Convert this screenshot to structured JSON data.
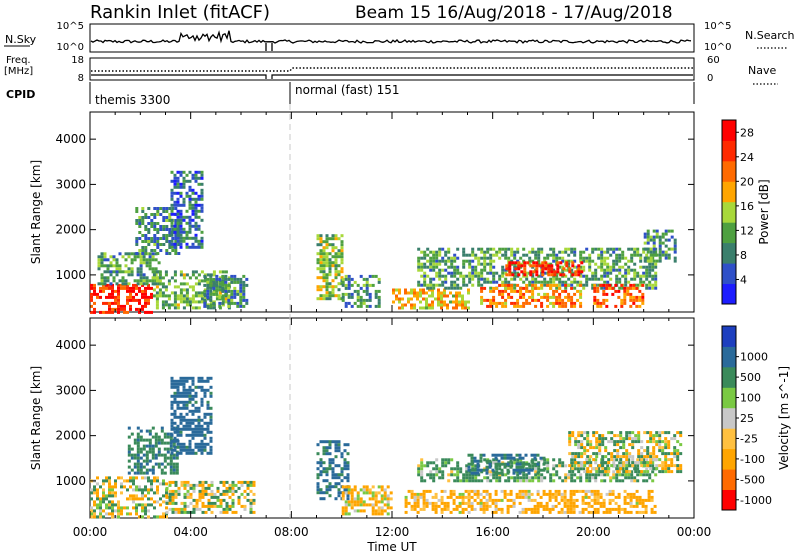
{
  "title": {
    "station": "Rankin Inlet (fitACF)",
    "beam_dates": "Beam 15  16/Aug/2018 - 17/Aug/2018"
  },
  "header_panels": {
    "nsky_label": "N.Sky",
    "nsky_ticks": [
      "10^5",
      "10^0"
    ],
    "nsearch_label": "N.Search",
    "nsearch_ticks": [
      "10^5",
      "10^0"
    ],
    "freq_label_1": "Freq.",
    "freq_label_2": "[MHz]",
    "freq_ticks": [
      "18",
      "8"
    ],
    "nave_label": "Nave",
    "nave_ticks": [
      "60",
      "0"
    ],
    "cpid_label": "CPID",
    "cpid_modes": [
      "themis 3300",
      "normal (fast) 151"
    ]
  },
  "colors": {
    "power_scale": [
      "#1d1dff",
      "#2f50c8",
      "#3a7f6c",
      "#4ea040",
      "#a8d83a",
      "#ffa500",
      "#ff6a00",
      "#ff2a00",
      "#ff0000"
    ],
    "velocity_scale": [
      "#ff0000",
      "#ff6a00",
      "#ffa500",
      "#ffc040",
      "#c8c8c8",
      "#7ac943",
      "#3a8a5a",
      "#2a6a9a",
      "#1d3fbf"
    ]
  },
  "chart_data": [
    {
      "type": "heatmap",
      "title": "",
      "xlabel": "",
      "ylabel": "Slant Range [km]",
      "x_ticks": [
        "00:00",
        "04:00",
        "08:00",
        "12:00",
        "16:00",
        "20:00",
        "00:00"
      ],
      "xlim_hours": [
        0,
        24
      ],
      "y_ticks": [
        1000,
        2000,
        3000,
        4000
      ],
      "ylim": [
        180,
        4600
      ],
      "colorbar_label": "Power [dB]",
      "colorbar_ticks": [
        4,
        8,
        12,
        16,
        20,
        24,
        28
      ],
      "colorbar_range": [
        0,
        30
      ],
      "regions": [
        {
          "t0": 0.0,
          "t1": 2.5,
          "r0": 200,
          "r1": 800,
          "value": 26
        },
        {
          "t0": 0.3,
          "t1": 2.8,
          "r0": 800,
          "r1": 1500,
          "value": 11
        },
        {
          "t0": 1.8,
          "t1": 3.5,
          "r0": 1500,
          "r1": 2500,
          "value": 9
        },
        {
          "t0": 2.5,
          "t1": 5.5,
          "r0": 250,
          "r1": 1100,
          "value": 12
        },
        {
          "t0": 3.2,
          "t1": 4.5,
          "r0": 1600,
          "r1": 3300,
          "value": 7
        },
        {
          "t0": 4.5,
          "t1": 6.2,
          "r0": 300,
          "r1": 1000,
          "value": 9
        },
        {
          "t0": 9.0,
          "t1": 10.0,
          "r0": 500,
          "r1": 1900,
          "value": 14
        },
        {
          "t0": 10.0,
          "t1": 11.5,
          "r0": 300,
          "r1": 1000,
          "value": 10
        },
        {
          "t0": 12.0,
          "t1": 15.0,
          "r0": 250,
          "r1": 700,
          "value": 18
        },
        {
          "t0": 13.0,
          "t1": 22.5,
          "r0": 700,
          "r1": 1600,
          "value": 11
        },
        {
          "t0": 15.5,
          "t1": 19.5,
          "r0": 300,
          "r1": 800,
          "value": 21
        },
        {
          "t0": 16.5,
          "t1": 19.5,
          "r0": 1000,
          "r1": 1300,
          "value": 25
        },
        {
          "t0": 20.0,
          "t1": 22.0,
          "r0": 300,
          "r1": 800,
          "value": 23
        },
        {
          "t0": 22.0,
          "t1": 23.2,
          "r0": 1300,
          "r1": 2000,
          "value": 10
        }
      ]
    },
    {
      "type": "heatmap",
      "title": "",
      "xlabel": "Time UT",
      "ylabel": "Slant Range [km]",
      "x_ticks": [
        "00:00",
        "04:00",
        "08:00",
        "12:00",
        "16:00",
        "20:00",
        "00:00"
      ],
      "xlim_hours": [
        0,
        24
      ],
      "y_ticks": [
        1000,
        2000,
        3000,
        4000
      ],
      "ylim": [
        180,
        4600
      ],
      "colorbar_label": "Velocity [m s^-1]",
      "colorbar_ticks": [
        -1000,
        -500,
        -100,
        -25,
        25,
        100,
        500,
        1000
      ],
      "regions": [
        {
          "t0": 0.0,
          "t1": 3.0,
          "r0": 200,
          "r1": 1100,
          "value": 0
        },
        {
          "t0": 1.5,
          "t1": 3.5,
          "r0": 1200,
          "r1": 2200,
          "value": 400
        },
        {
          "t0": 3.2,
          "t1": 4.8,
          "r0": 1600,
          "r1": 3300,
          "value": 700
        },
        {
          "t0": 3.0,
          "t1": 6.5,
          "r0": 300,
          "r1": 1000,
          "value": -20
        },
        {
          "t0": 9.0,
          "t1": 10.2,
          "r0": 600,
          "r1": 1900,
          "value": 600
        },
        {
          "t0": 10.0,
          "t1": 12.0,
          "r0": 250,
          "r1": 900,
          "value": -150
        },
        {
          "t0": 12.5,
          "t1": 22.5,
          "r0": 300,
          "r1": 800,
          "value": -200
        },
        {
          "t0": 13.0,
          "t1": 22.5,
          "r0": 1000,
          "r1": 1500,
          "value": 200
        },
        {
          "t0": 15.0,
          "t1": 18.0,
          "r0": 1200,
          "r1": 1600,
          "value": 500
        },
        {
          "t0": 19.0,
          "t1": 23.5,
          "r0": 1200,
          "r1": 2100,
          "value": 20
        }
      ]
    }
  ]
}
